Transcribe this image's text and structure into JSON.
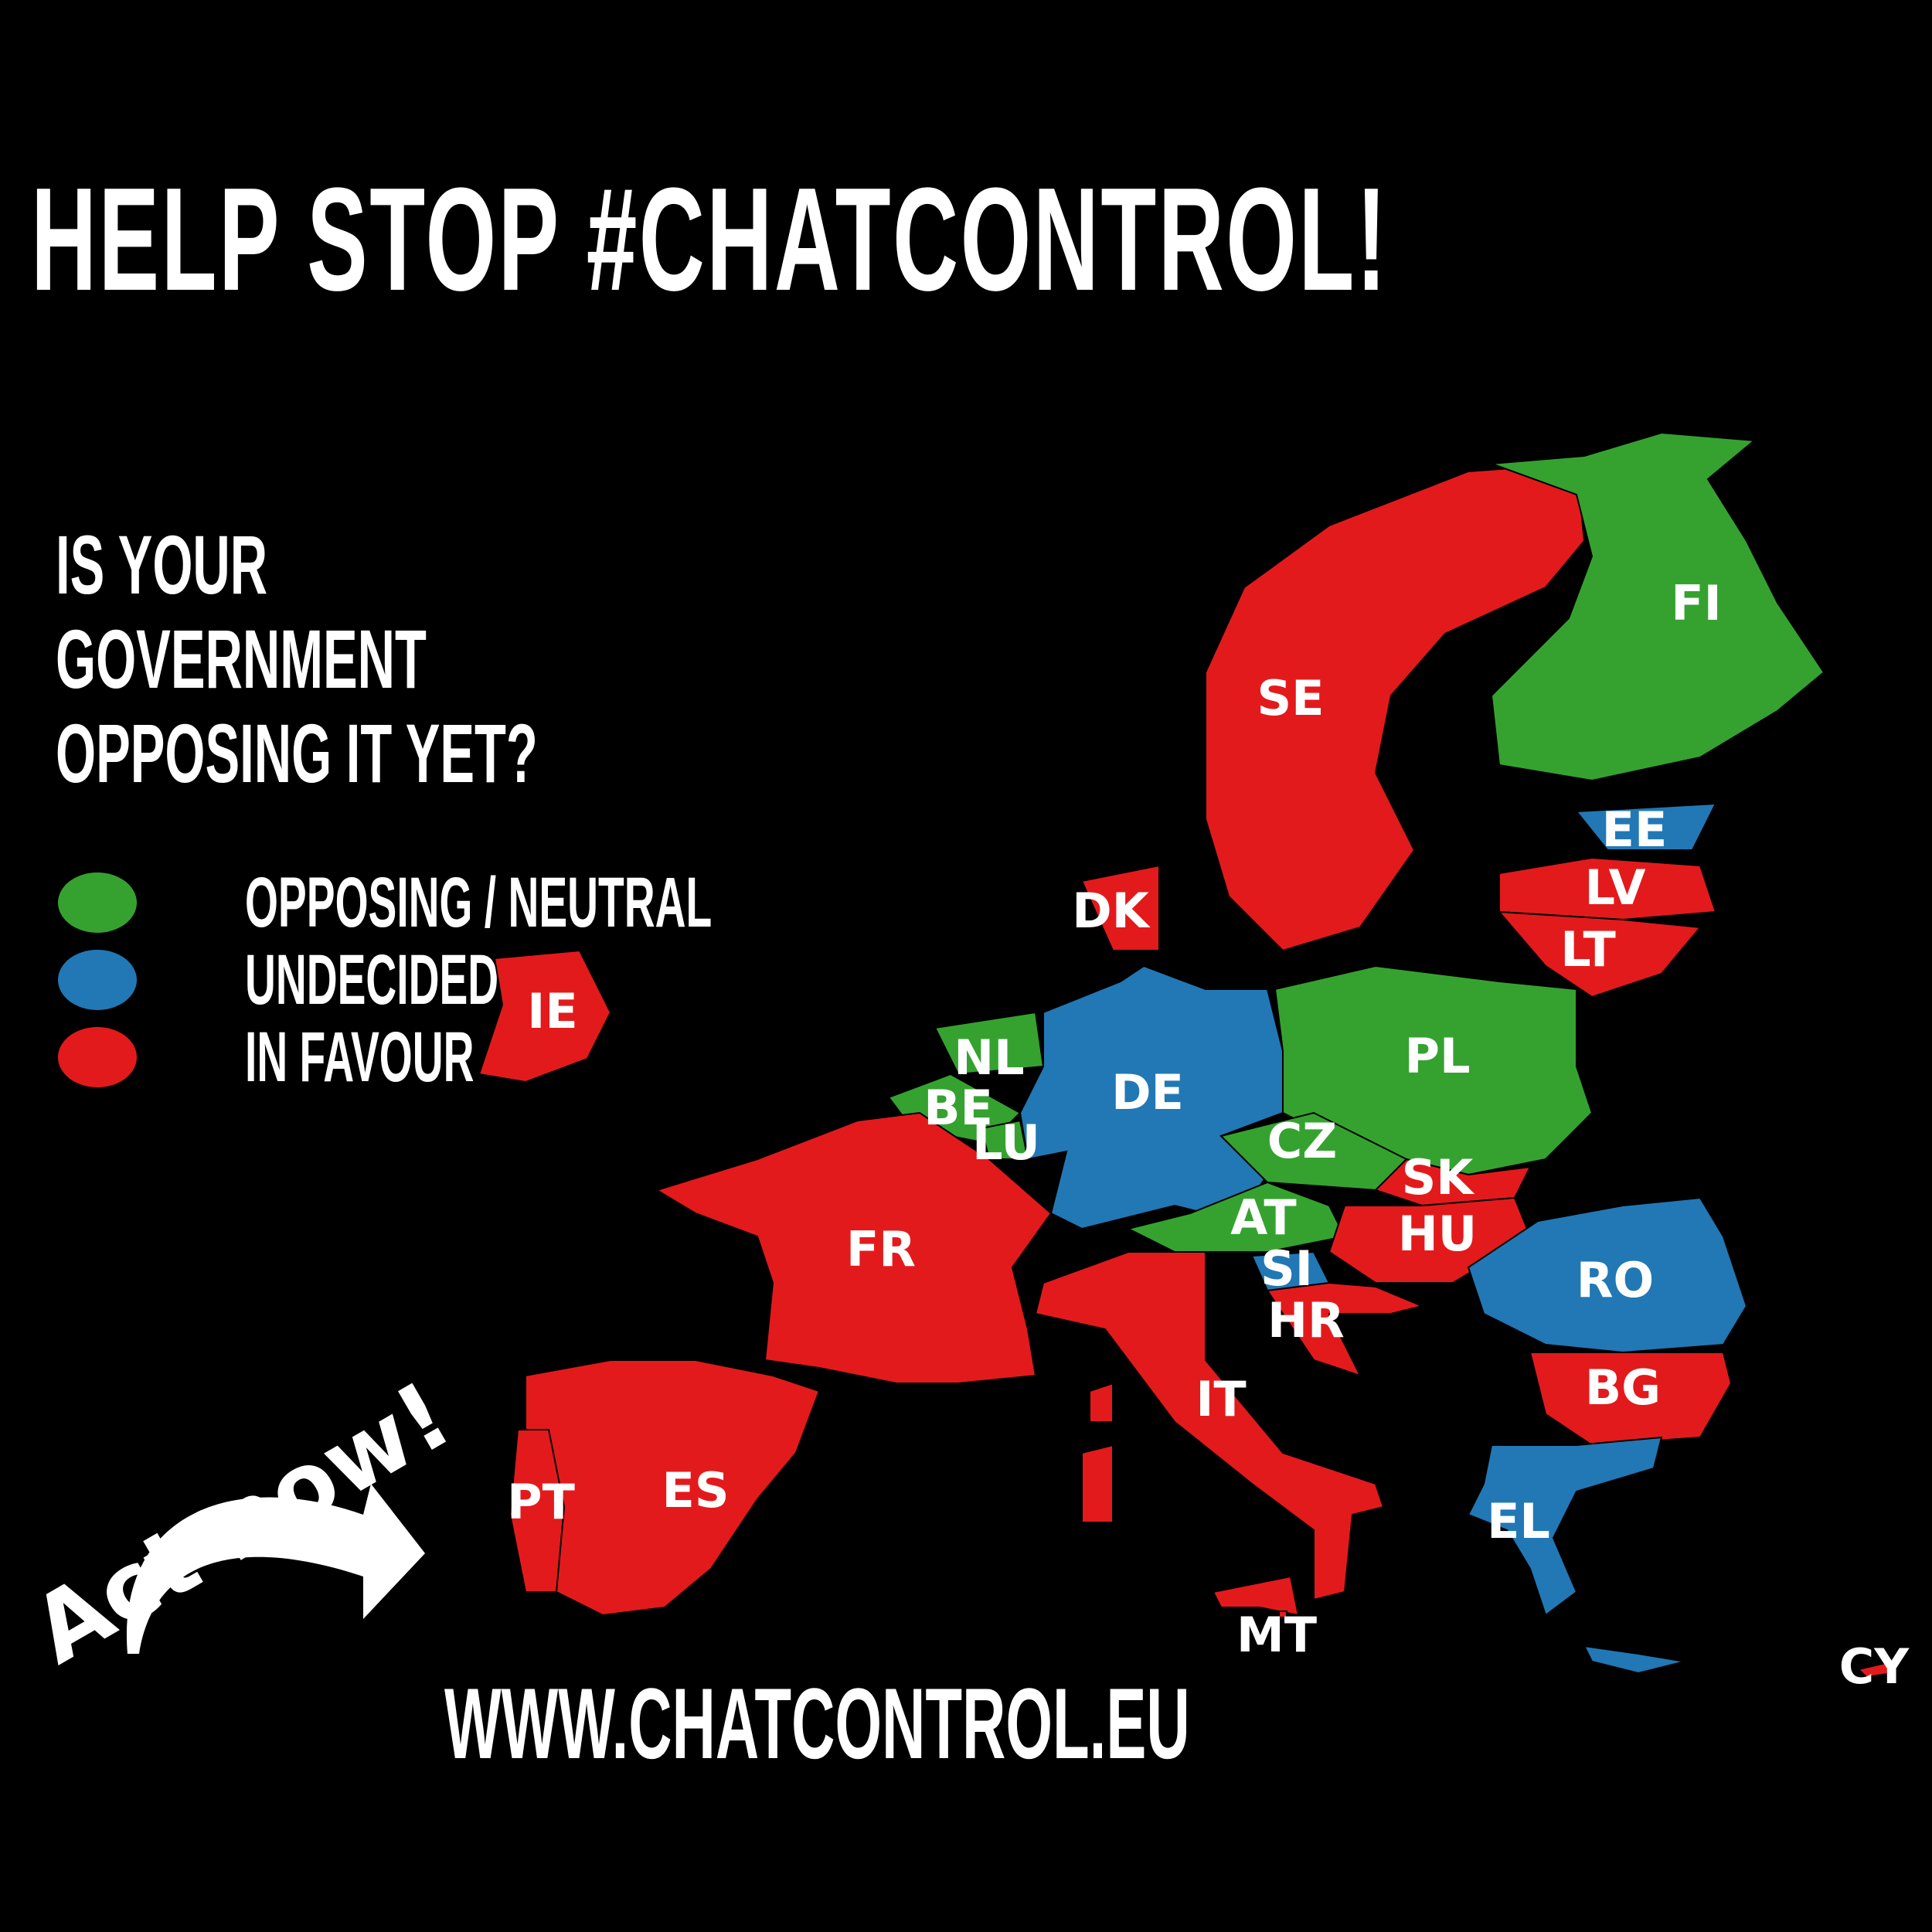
{
  "title": "HELP STOP #CHATCONTROL!",
  "question": [
    "IS YOUR",
    "GOVERNMENT",
    "OPPOSING IT YET?"
  ],
  "legend": [
    {
      "status": "opposing",
      "label": "OPPOSING / NEUTRAL",
      "color": "#35a230"
    },
    {
      "status": "undecided",
      "label": "UNDECIDED",
      "color": "#2178b5"
    },
    {
      "status": "favour",
      "label": "IN FAVOUR",
      "color": "#e31a1c"
    }
  ],
  "call_to_action": "Act now!",
  "website": "WWW.CHATCONTROL.EU",
  "countries": [
    {
      "code": "IE",
      "status": "favour"
    },
    {
      "code": "DK",
      "status": "favour"
    },
    {
      "code": "SE",
      "status": "favour"
    },
    {
      "code": "FI",
      "status": "opposing"
    },
    {
      "code": "EE",
      "status": "undecided"
    },
    {
      "code": "LV",
      "status": "favour"
    },
    {
      "code": "LT",
      "status": "favour"
    },
    {
      "code": "NL",
      "status": "opposing"
    },
    {
      "code": "BE",
      "status": "opposing"
    },
    {
      "code": "LU",
      "status": "opposing"
    },
    {
      "code": "DE",
      "status": "undecided"
    },
    {
      "code": "PL",
      "status": "opposing"
    },
    {
      "code": "CZ",
      "status": "opposing"
    },
    {
      "code": "SK",
      "status": "favour"
    },
    {
      "code": "AT",
      "status": "opposing"
    },
    {
      "code": "HU",
      "status": "favour"
    },
    {
      "code": "SI",
      "status": "undecided"
    },
    {
      "code": "HR",
      "status": "favour"
    },
    {
      "code": "RO",
      "status": "undecided"
    },
    {
      "code": "BG",
      "status": "favour"
    },
    {
      "code": "IT",
      "status": "favour"
    },
    {
      "code": "FR",
      "status": "favour"
    },
    {
      "code": "ES",
      "status": "favour"
    },
    {
      "code": "PT",
      "status": "favour"
    },
    {
      "code": "MT",
      "status": "favour"
    },
    {
      "code": "EL",
      "status": "undecided"
    },
    {
      "code": "CY",
      "status": "favour"
    }
  ]
}
